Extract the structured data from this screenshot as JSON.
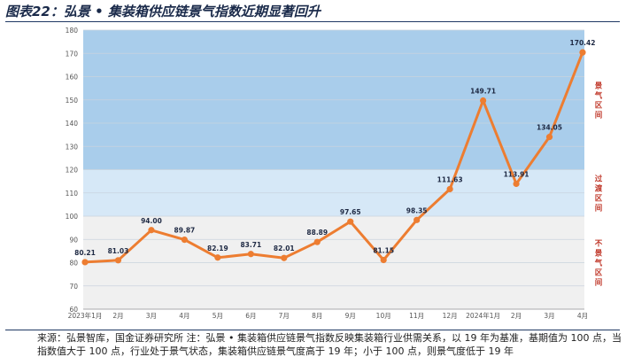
{
  "figure": {
    "title": "图表22：弘景 • 集装箱供应链景气指数近期显著回升",
    "source_note": "来源：弘景智库，国金证券研究所  注：弘景 • 集装箱供应链景气指数反映集装箱行业供需关系，以 19 年为基准，基期值为 100 点，当指数值大于 100 点，行业处于景气状态，集装箱供应链景气度高于 19 年；小于 100 点，则景气度低于 19 年"
  },
  "chart_data": {
    "type": "line",
    "categories": [
      "2023年1月",
      "2月",
      "3月",
      "4月",
      "5月",
      "6月",
      "7月",
      "8月",
      "9月",
      "10月",
      "11月",
      "12月",
      "2024年1月",
      "2月",
      "3月",
      "4月"
    ],
    "series": [
      {
        "values": [
          80.21,
          81.03,
          94.0,
          89.87,
          82.19,
          83.71,
          82.01,
          88.89,
          97.65,
          81.15,
          98.35,
          111.63,
          149.71,
          113.91,
          134.05,
          170.42
        ]
      }
    ],
    "data_labels": [
      "80.21",
      "81.03",
      "94.00",
      "89.87",
      "82.19",
      "83.71",
      "82.01",
      "88.89",
      "97.65",
      "81.15",
      "98.35",
      "111.63",
      "149.71",
      "113.91",
      "134.05",
      "170.42"
    ],
    "ylim": [
      60,
      180
    ],
    "yticks": [
      60,
      70,
      80,
      90,
      100,
      110,
      120,
      130,
      140,
      150,
      160,
      170,
      180
    ],
    "bands": [
      {
        "label": "景气区间",
        "from": 120,
        "to": 180,
        "color": "#a9cdeb"
      },
      {
        "label": "过渡区间",
        "from": 100,
        "to": 120,
        "color": "#d6e8f7"
      },
      {
        "label": "不景气区间",
        "from": 60,
        "to": 100,
        "color": "#f0f0f0"
      }
    ],
    "line_color": "#ed7d31",
    "band_label_color": "#c0392b",
    "grid": true
  }
}
